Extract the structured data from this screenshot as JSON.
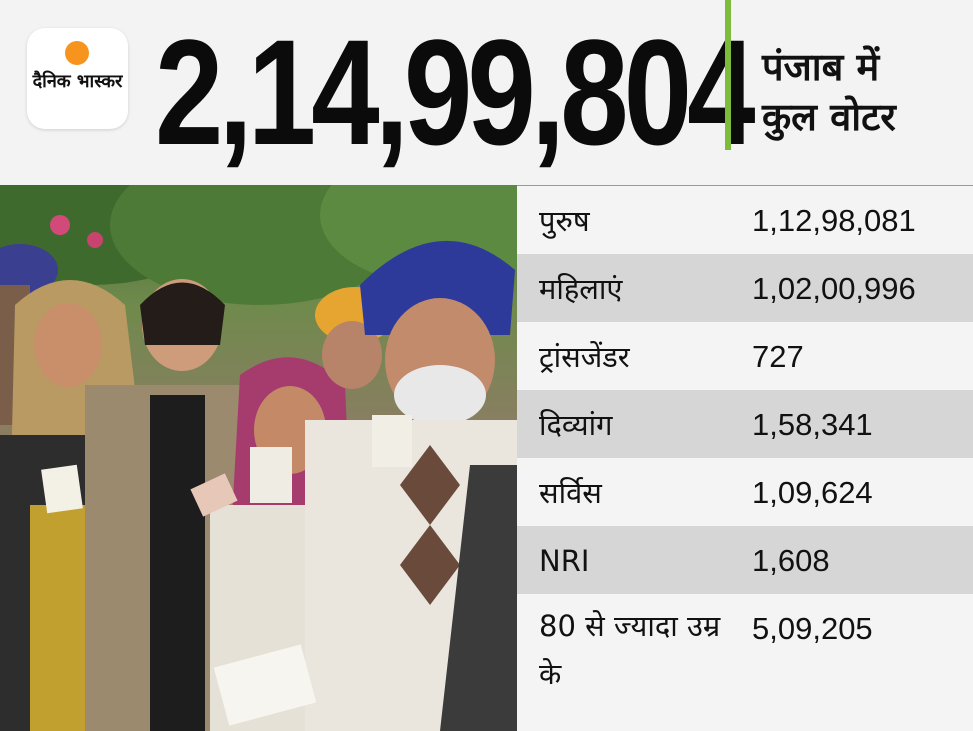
{
  "header": {
    "logo_text": "दैनिक भास्कर",
    "total_voters": "2,14,99,804",
    "subtitle_line1": "पंजाब में",
    "subtitle_line2": "कुल वोटर"
  },
  "table": {
    "rows": [
      {
        "label": "पुरुष",
        "value": "1,12,98,081"
      },
      {
        "label": "महिलाएं",
        "value": "1,02,00,996"
      },
      {
        "label": "ट्रांसजेंडर",
        "value": "727"
      },
      {
        "label": "दिव्यांग",
        "value": "1,58,341"
      },
      {
        "label": "सर्विस",
        "value": "1,09,624"
      },
      {
        "label": "NRI",
        "value": "1,608"
      },
      {
        "label": "80 से ज्यादा उम्र के",
        "value": "5,09,205"
      }
    ]
  },
  "colors": {
    "accent": "#7dbb3c",
    "logo_sun": "#f7941d",
    "row_shade": "#d6d6d6",
    "row_white": "#f4f4f4"
  }
}
